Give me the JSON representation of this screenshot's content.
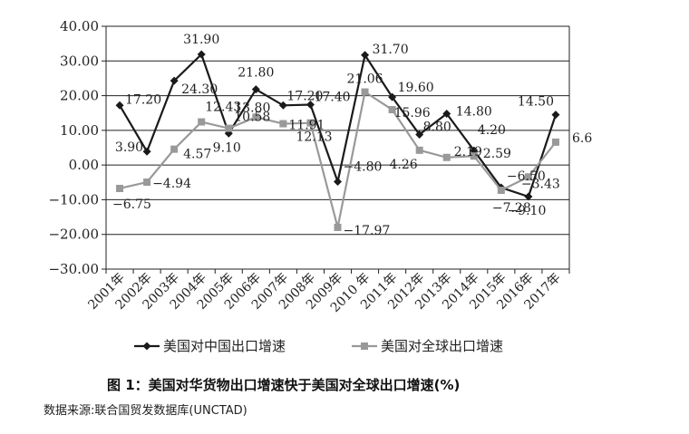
{
  "caption": "图 1：美国对华货物出口增速快于美国对全球出口增速(%)",
  "source": "数据来源:联合国贸发数据库(UNCTAD)",
  "chart_data": {
    "type": "line",
    "title": "",
    "xlabel": "",
    "ylabel": "",
    "ylim": [
      -30,
      40
    ],
    "yticks": [
      -30,
      -20,
      -10,
      0,
      10,
      20,
      30,
      40
    ],
    "ytick_labels": [
      "−30.00",
      "−20.00",
      "−10.00",
      "0.00",
      "10.00",
      "20.00",
      "30.00",
      "40.00"
    ],
    "grid": "horizontal",
    "legend_position": "bottom",
    "categories": [
      "2001年",
      "2002年",
      "2003年",
      "2004年",
      "2005年",
      "2006年",
      "2007年",
      "2008年",
      "2009年",
      "2010 年",
      "2011年",
      "2012年",
      "2013年",
      "2014年",
      "2015年",
      "2016年",
      "2017年"
    ],
    "series": [
      {
        "name": "美国对中国出口增速",
        "color": "#1a1a1a",
        "marker": "diamond",
        "values": [
          17.2,
          3.9,
          24.3,
          31.9,
          9.1,
          21.8,
          17.2,
          17.4,
          -4.8,
          31.7,
          19.6,
          8.8,
          14.8,
          4.2,
          -6.5,
          -9.1,
          14.5
        ],
        "labels": [
          "17.20",
          "3.90",
          "24.30",
          "31.90",
          "9.10",
          "21.80",
          "17.20",
          "17.40",
          "−4.80",
          "31.70",
          "19.60",
          "8.80",
          "14.80",
          "4.20",
          "−6.50",
          "−9.10",
          "14.50"
        ]
      },
      {
        "name": "美国对全球出口增速",
        "color": "#999999",
        "marker": "square",
        "values": [
          -6.75,
          -4.94,
          4.57,
          12.43,
          10.58,
          13.8,
          11.91,
          12.13,
          -17.97,
          21.06,
          15.96,
          4.26,
          2.19,
          2.59,
          -7.28,
          -3.43,
          6.6
        ],
        "labels": [
          "−6.75",
          "−4.94",
          "4.57",
          "12.43",
          "10.58",
          "13.80",
          "11.91",
          "12.13",
          "−17.97",
          "21.06",
          "15.96",
          "4.26",
          "2.19",
          "2.59",
          "−7.28",
          "−3.43",
          "6.6"
        ]
      }
    ]
  }
}
